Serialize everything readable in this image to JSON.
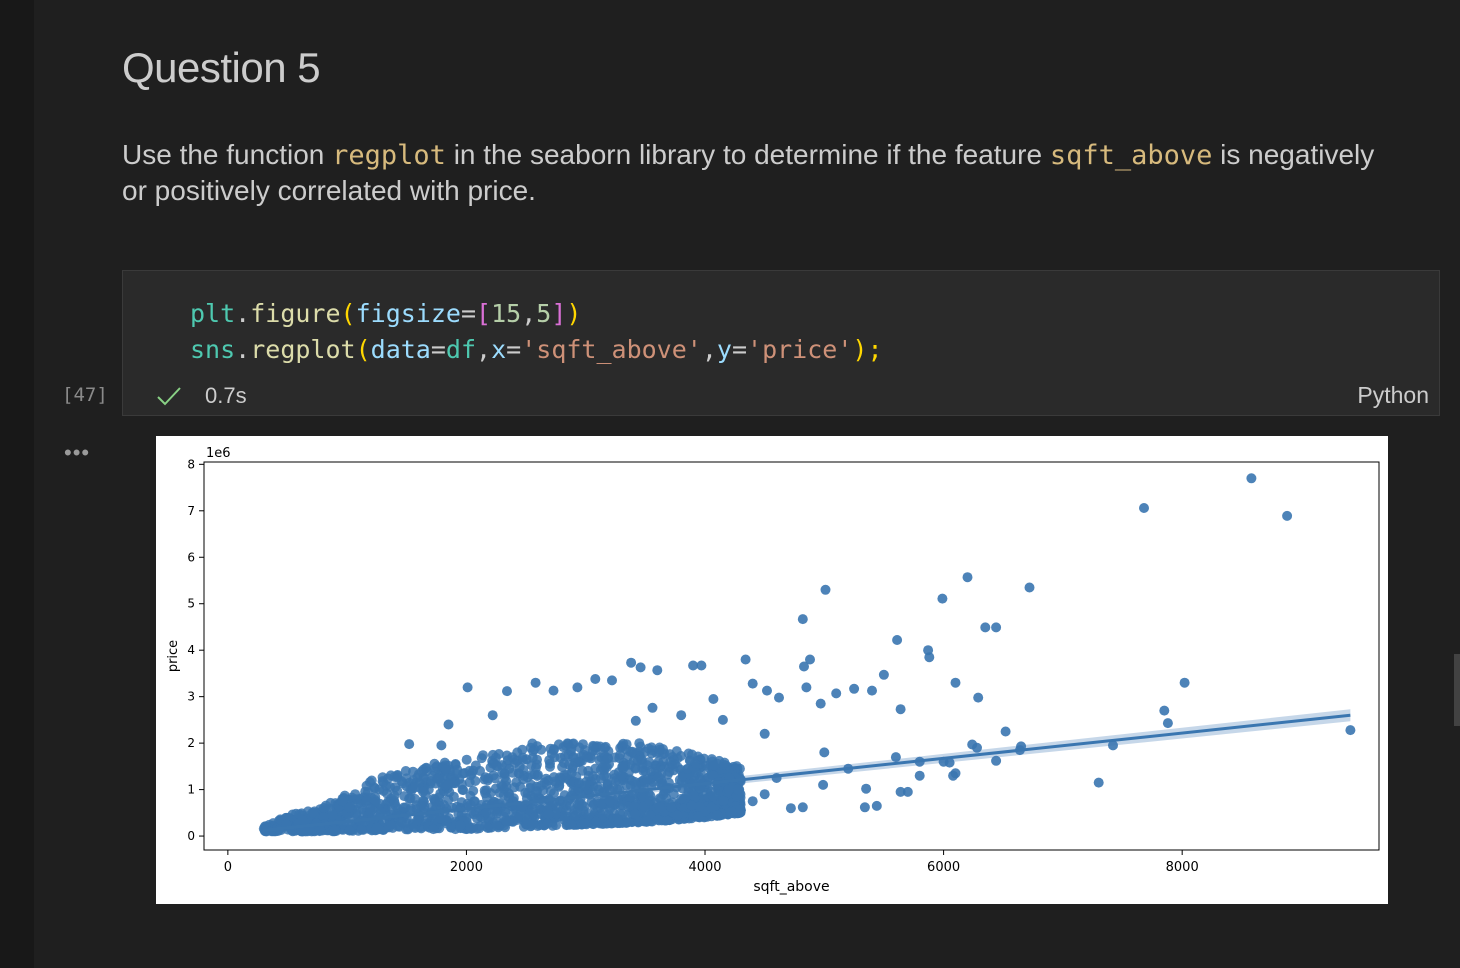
{
  "markdown": {
    "title": "Question 5",
    "text_1": "Use the function ",
    "code_1": "regplot",
    "text_2": " in the seaborn library to determine if the feature ",
    "code_2": "sqft_above",
    "text_3": " is negatively or positively correlated with price."
  },
  "cell": {
    "execution_count": "[47]",
    "code_lines": [
      "plt.figure(figsize=[15,5])",
      "sns.regplot(data=df,x='sqft_above',y='price');"
    ],
    "status_icon": "check-icon",
    "duration": "0.7s",
    "language": "Python"
  },
  "output": {
    "more_icon": "ellipsis-icon"
  },
  "colors": {
    "point": "#3a76b0",
    "line": "#3a76b0",
    "ci_band": "#b8cde3",
    "string": "#ce9178",
    "inline_code": "#d7ba7d"
  },
  "chart_data": {
    "type": "scatter",
    "xlabel": "sqft_above",
    "ylabel": "price",
    "y_offset_label": "1e6",
    "xlim": [
      -200,
      9650
    ],
    "ylim": [
      -0.3,
      8.05
    ],
    "x_ticks": [
      0,
      2000,
      4000,
      6000,
      8000
    ],
    "y_ticks": [
      0,
      1,
      2,
      3,
      4,
      5,
      6,
      7,
      8
    ],
    "regression_line": {
      "x": [
        290,
        9410
      ],
      "y": [
        0.12,
        2.6
      ]
    },
    "dense_cloud": [
      [
        300,
        0.1,
        0.3
      ],
      [
        800,
        0.1,
        0.65
      ],
      [
        1200,
        0.12,
        1.2
      ],
      [
        1600,
        0.15,
        1.5
      ],
      [
        2000,
        0.15,
        1.7
      ],
      [
        2500,
        0.2,
        2.0
      ],
      [
        3000,
        0.25,
        2.0
      ],
      [
        3500,
        0.3,
        2.0
      ],
      [
        4000,
        0.4,
        1.7
      ],
      [
        4300,
        0.5,
        1.5
      ]
    ],
    "points": [
      [
        8580,
        7.7
      ],
      [
        7680,
        7.06
      ],
      [
        8880,
        6.89
      ],
      [
        6200,
        5.57
      ],
      [
        6720,
        5.35
      ],
      [
        5010,
        5.3
      ],
      [
        5990,
        5.11
      ],
      [
        6350,
        4.49
      ],
      [
        6440,
        4.49
      ],
      [
        4820,
        4.67
      ],
      [
        5610,
        4.22
      ],
      [
        5870,
        4.0
      ],
      [
        5880,
        3.85
      ],
      [
        4880,
        3.8
      ],
      [
        4340,
        3.8
      ],
      [
        4830,
        3.65
      ],
      [
        3380,
        3.73
      ],
      [
        3460,
        3.63
      ],
      [
        3600,
        3.57
      ],
      [
        3900,
        3.67
      ],
      [
        3970,
        3.67
      ],
      [
        6100,
        3.3
      ],
      [
        8020,
        3.3
      ],
      [
        6290,
        2.98
      ],
      [
        6520,
        2.25
      ],
      [
        7850,
        2.7
      ],
      [
        7880,
        2.43
      ],
      [
        9410,
        2.28
      ],
      [
        7420,
        1.95
      ],
      [
        7300,
        1.15
      ],
      [
        6100,
        1.35
      ],
      [
        6050,
        1.58
      ],
      [
        6000,
        1.6
      ],
      [
        5800,
        1.3
      ],
      [
        5800,
        1.6
      ],
      [
        5700,
        0.95
      ],
      [
        5640,
        0.95
      ],
      [
        5340,
        0.62
      ],
      [
        5350,
        1.02
      ],
      [
        4820,
        0.62
      ],
      [
        4720,
        0.6
      ],
      [
        4990,
        1.1
      ],
      [
        5640,
        2.73
      ],
      [
        5500,
        3.47
      ],
      [
        5400,
        3.13
      ],
      [
        5250,
        3.17
      ],
      [
        5100,
        3.07
      ],
      [
        4970,
        2.85
      ],
      [
        4850,
        3.2
      ],
      [
        4620,
        2.98
      ],
      [
        4520,
        3.13
      ],
      [
        4400,
        3.28
      ],
      [
        2010,
        3.2
      ],
      [
        2340,
        3.12
      ],
      [
        2580,
        3.3
      ],
      [
        2730,
        3.13
      ],
      [
        2930,
        3.2
      ],
      [
        3080,
        3.38
      ],
      [
        3220,
        3.35
      ],
      [
        1520,
        1.98
      ],
      [
        1790,
        1.95
      ],
      [
        1850,
        2.4
      ],
      [
        2220,
        2.6
      ],
      [
        3420,
        2.48
      ],
      [
        4070,
        2.95
      ],
      [
        4500,
        2.2
      ],
      [
        5000,
        1.8
      ],
      [
        5200,
        1.45
      ],
      [
        5600,
        1.7
      ],
      [
        6280,
        1.9
      ],
      [
        6440,
        1.62
      ],
      [
        6640,
        1.85
      ],
      [
        4200,
        1.0
      ],
      [
        4500,
        0.9
      ],
      [
        4600,
        1.25
      ],
      [
        4150,
        2.5
      ],
      [
        3800,
        2.6
      ],
      [
        3560,
        2.76
      ],
      [
        6080,
        1.3
      ],
      [
        6240,
        1.97
      ],
      [
        6650,
        1.93
      ],
      [
        5440,
        0.65
      ],
      [
        4400,
        0.75
      ]
    ]
  }
}
